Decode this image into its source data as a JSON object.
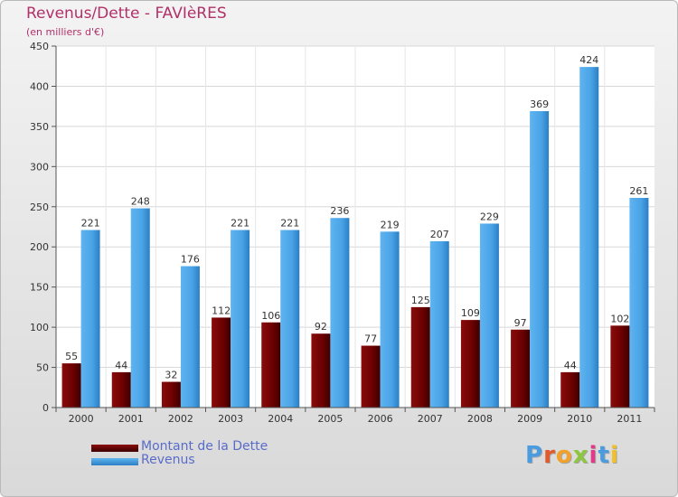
{
  "chart_data": {
    "type": "bar",
    "title": "Revenus/Dette - FAVIèRES",
    "subtitle": "(en milliers d'€)",
    "categories": [
      "2000",
      "2001",
      "2002",
      "2003",
      "2004",
      "2005",
      "2006",
      "2007",
      "2008",
      "2009",
      "2010",
      "2011"
    ],
    "series": [
      {
        "name": "Montant de la Dette",
        "color": "#6b0000",
        "values": [
          55,
          44,
          32,
          112,
          106,
          92,
          77,
          125,
          109,
          97,
          44,
          102
        ]
      },
      {
        "name": "Revenus",
        "color": "#4aa3e6",
        "values": [
          221,
          248,
          176,
          221,
          221,
          236,
          219,
          207,
          229,
          369,
          424,
          261
        ]
      }
    ],
    "ylim": [
      0,
      450
    ],
    "yticks": [
      0,
      50,
      100,
      150,
      200,
      250,
      300,
      350,
      400,
      450
    ],
    "grid": true,
    "legend": "bottom-left"
  },
  "logo": {
    "text": "Proxiti",
    "letters": [
      "P",
      "r",
      "o",
      "x",
      "i",
      "t",
      "i"
    ],
    "colors": [
      "#4a9be0",
      "#e05a2a",
      "#f2a12a",
      "#8fc63f",
      "#e03a8a",
      "#4a9be0",
      "#f2c12a"
    ]
  }
}
